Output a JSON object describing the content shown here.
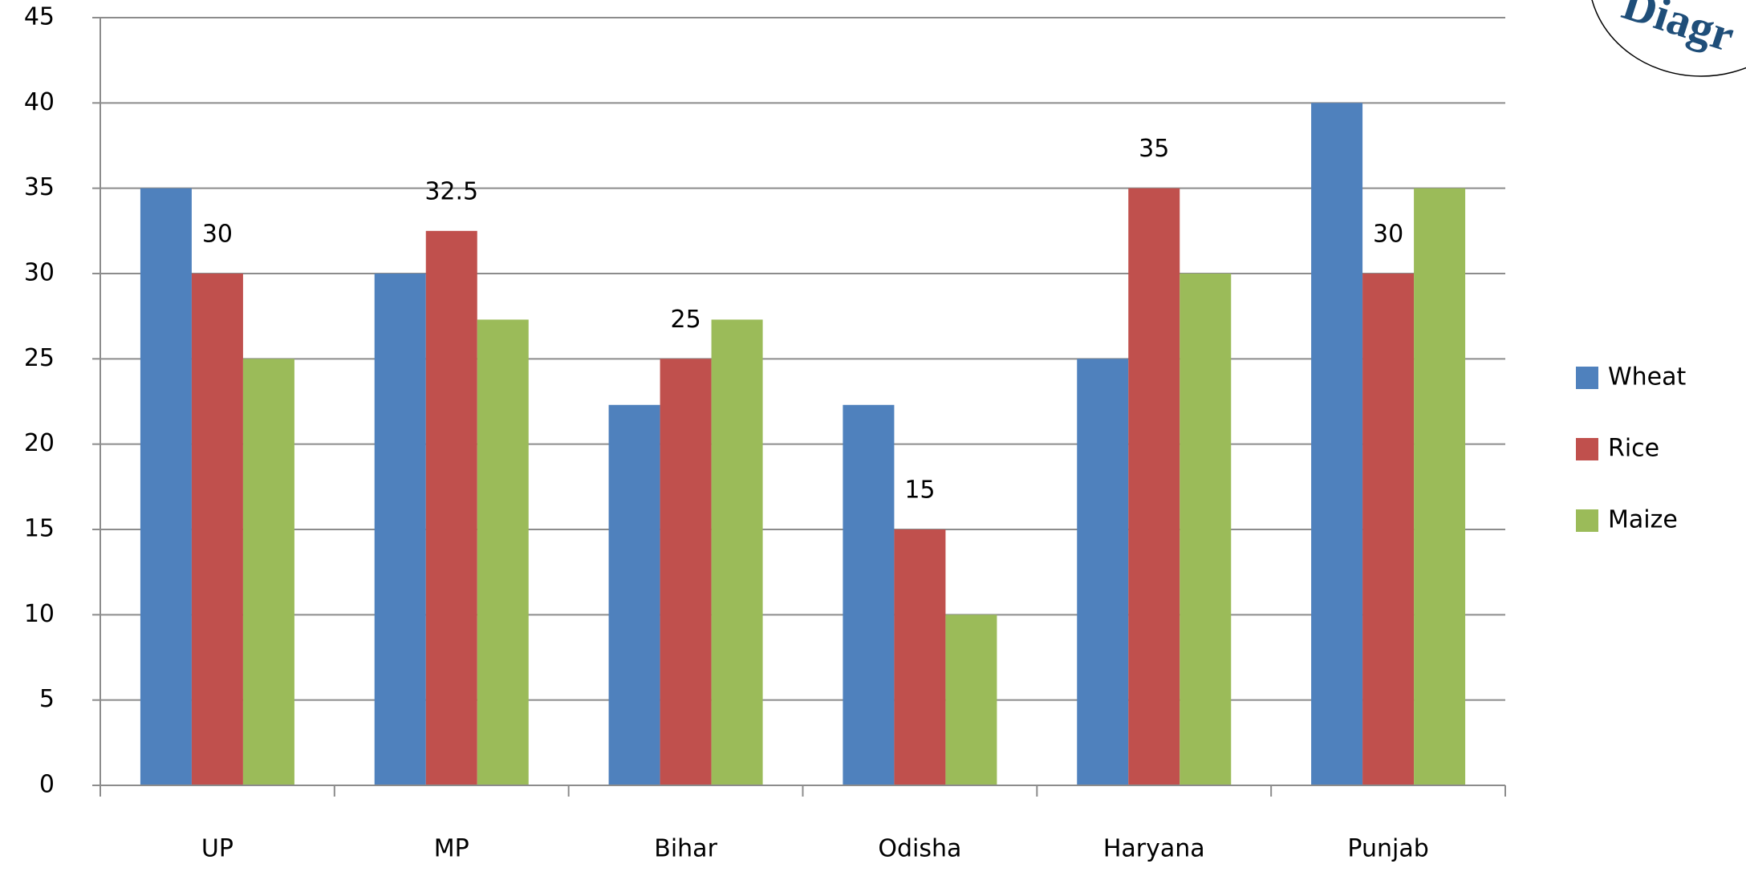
{
  "chart_data": {
    "type": "bar",
    "categories": [
      "UP",
      "MP",
      "Bihar",
      "Odisha",
      "Haryana",
      "Punjab"
    ],
    "series": [
      {
        "name": "Wheat",
        "color": "#4f81bd",
        "values": [
          35,
          30,
          22.3,
          22.3,
          25,
          40
        ]
      },
      {
        "name": "Rice",
        "color": "#c0504d",
        "values": [
          30,
          32.5,
          25,
          15,
          35,
          30
        ],
        "data_labels": true
      },
      {
        "name": "Maize",
        "color": "#9bbb59",
        "values": [
          25,
          27.3,
          27.3,
          10,
          30,
          35
        ]
      }
    ],
    "ylim": [
      0,
      45
    ],
    "yticks": [
      0,
      5,
      10,
      15,
      20,
      25,
      30,
      35,
      40,
      45
    ],
    "grid": true,
    "legend": "right",
    "watermark": "Diagr"
  }
}
